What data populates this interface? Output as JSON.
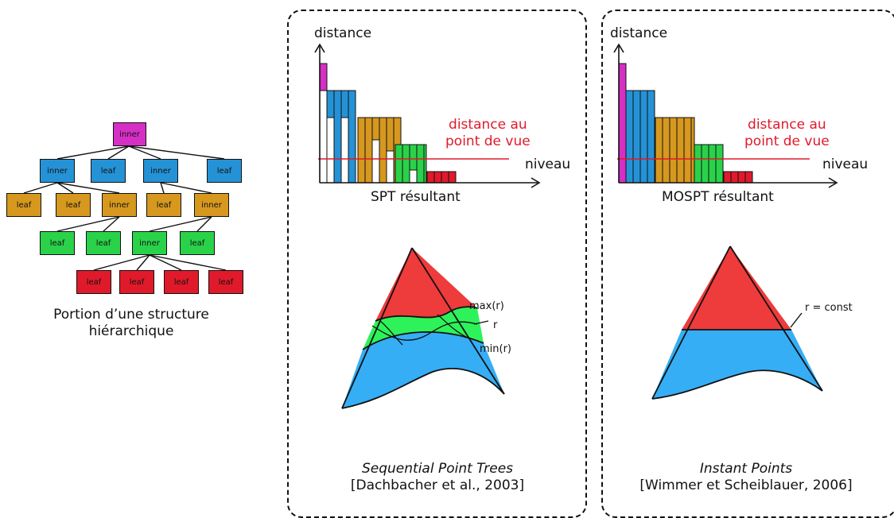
{
  "tree": {
    "nodes": [
      {
        "label": "inner",
        "color": "#d62fc6"
      },
      {
        "label": "inner",
        "color": "#2592d6"
      },
      {
        "label": "leaf",
        "color": "#2592d6"
      },
      {
        "label": "inner",
        "color": "#2592d6"
      },
      {
        "label": "leaf",
        "color": "#2592d6"
      },
      {
        "label": "leaf",
        "color": "#d6981e"
      },
      {
        "label": "leaf",
        "color": "#d6981e"
      },
      {
        "label": "inner",
        "color": "#d6981e"
      },
      {
        "label": "leaf",
        "color": "#d6981e"
      },
      {
        "label": "inner",
        "color": "#d6981e"
      },
      {
        "label": "leaf",
        "color": "#2ad24a"
      },
      {
        "label": "leaf",
        "color": "#2ad24a"
      },
      {
        "label": "inner",
        "color": "#2ad24a"
      },
      {
        "label": "leaf",
        "color": "#2ad24a"
      },
      {
        "label": "leaf",
        "color": "#e01a2a"
      },
      {
        "label": "leaf",
        "color": "#e01a2a"
      },
      {
        "label": "leaf",
        "color": "#e01a2a"
      },
      {
        "label": "leaf",
        "color": "#e01a2a"
      }
    ],
    "caption_line1": "Portion d’une structure",
    "caption_line2": "hiérarchique"
  },
  "spt_panel": {
    "y_axis_label": "distance",
    "x_axis_label": "niveau",
    "threshold_label_line1": "distance au",
    "threshold_label_line2": "point de vue",
    "chart_title": "SPT résultant",
    "cone_labels": {
      "max": "max(r)",
      "r": "r",
      "min": "min(r)"
    },
    "caption_line1": "Sequential Point Trees",
    "caption_line2": "[Dachbacher et al., 2003]"
  },
  "mospt_panel": {
    "y_axis_label": "distance",
    "x_axis_label": "niveau",
    "threshold_label_line1": "distance au",
    "threshold_label_line2": "point de vue",
    "chart_title": "MOSPT résultant",
    "cone_labels": {
      "r": "r = const"
    },
    "caption_line1": "Instant Points",
    "caption_line2": "[Wimmer et Scheiblauer, 2006]"
  },
  "colors": {
    "magenta": "#d62fc6",
    "blue": "#2592d6",
    "orange": "#d6981e",
    "green": "#2ad24a",
    "red": "#e01a2a",
    "cone_red": "#ee3b3b",
    "cone_green": "#2ef25a",
    "cone_blue": "#35aef5"
  }
}
